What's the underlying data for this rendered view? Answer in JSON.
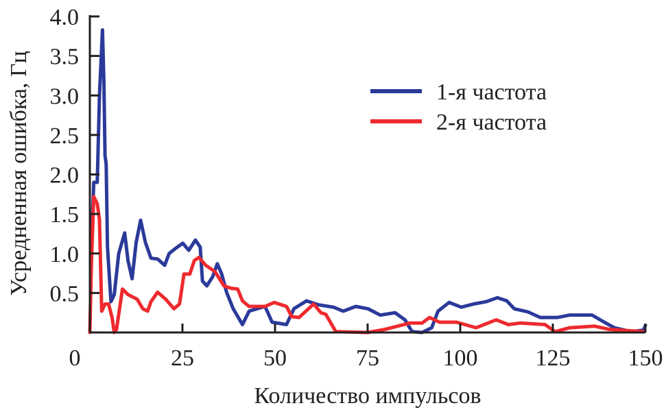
{
  "chart_data": {
    "type": "line",
    "title": "",
    "xlabel": "Количество импульсов",
    "ylabel": "Усредненная ошибка, Гц",
    "xlim": [
      0,
      150
    ],
    "ylim": [
      0,
      4.0
    ],
    "xticks": [
      "0",
      "25",
      "50",
      "75",
      "100",
      "125",
      "150"
    ],
    "yticks": [
      "0.5",
      "1.0",
      "1.5",
      "2.0",
      "2.5",
      "3.0",
      "3.5",
      "4.0"
    ],
    "grid": false,
    "legend_position": "top-right",
    "series": [
      {
        "name": "1-я частота",
        "color": "#2b3a9a",
        "x": [
          0.4,
          1.05,
          2.0,
          2.6,
          3.4,
          3.8,
          4.1,
          4.4,
          4.75,
          5.7,
          6.6,
          7.8,
          9.4,
          10.3,
          11.4,
          12.5,
          13.7,
          15,
          16.5,
          18.3,
          20.2,
          21.4,
          23.3,
          25.1,
          26.7,
          28.5,
          29.8,
          30.4,
          31.6,
          33.2,
          34.4,
          35.6,
          36.9,
          38.7,
          41.2,
          43,
          47.3,
          49.2,
          53.1,
          55.1,
          58.5,
          61.8,
          65.8,
          68.4,
          71.8,
          75.1,
          78.4,
          82.4,
          85.1,
          87.0,
          89.7,
          92.3,
          94.0,
          97.0,
          100.3,
          103.6,
          107.0,
          110.0,
          112.6,
          114.6,
          118.3,
          121.6,
          126.3,
          129.6,
          135.6,
          138.9,
          141.6,
          146.2,
          149.5,
          150
        ],
        "y": [
          1.08,
          1.9,
          1.9,
          3.0,
          3.83,
          3.17,
          2.24,
          2.13,
          1.08,
          0.39,
          0.48,
          1.0,
          1.26,
          0.91,
          0.68,
          1.14,
          1.42,
          1.14,
          0.94,
          0.93,
          0.85,
          1.0,
          1.07,
          1.13,
          1.04,
          1.17,
          1.08,
          0.65,
          0.59,
          0.71,
          0.87,
          0.74,
          0.51,
          0.3,
          0.1,
          0.27,
          0.33,
          0.13,
          0.1,
          0.3,
          0.4,
          0.35,
          0.32,
          0.27,
          0.33,
          0.3,
          0.22,
          0.25,
          0.16,
          0.01,
          0.0,
          0.06,
          0.27,
          0.38,
          0.32,
          0.36,
          0.39,
          0.44,
          0.4,
          0.3,
          0.26,
          0.19,
          0.19,
          0.22,
          0.22,
          0.13,
          0.06,
          0.01,
          0.03,
          0.09
        ]
      },
      {
        "name": "2-я частота",
        "color": "#ee2a2e",
        "x": [
          0,
          0.4,
          1.05,
          2.0,
          2.6,
          3.2,
          4.1,
          5.06,
          6.0,
          6.6,
          7.2,
          8.8,
          10.3,
          12.8,
          14.3,
          15.6,
          16.5,
          18.3,
          20.5,
          22.7,
          24.2,
          25.4,
          27,
          28.2,
          29.4,
          31.3,
          33.8,
          36.2,
          38.1,
          39.9,
          41.2,
          43,
          47.3,
          49.8,
          53.1,
          54.5,
          56.5,
          60.4,
          62.4,
          63.7,
          66.4,
          75.1,
          79.7,
          86.4,
          89.7,
          91.7,
          94.4,
          99.0,
          104.3,
          109.7,
          113.0,
          116.3,
          122.9,
          125.6,
          129.6,
          136.3,
          140.2,
          149.5
        ],
        "y": [
          0.0,
          0.85,
          1.72,
          1.63,
          1.43,
          0.27,
          0.36,
          0.36,
          0.19,
          0.0,
          0.04,
          0.55,
          0.48,
          0.42,
          0.3,
          0.27,
          0.39,
          0.51,
          0.42,
          0.3,
          0.36,
          0.74,
          0.74,
          0.91,
          0.95,
          0.85,
          0.77,
          0.59,
          0.56,
          0.55,
          0.4,
          0.33,
          0.33,
          0.38,
          0.33,
          0.2,
          0.19,
          0.36,
          0.25,
          0.23,
          0.01,
          0.0,
          0.04,
          0.12,
          0.12,
          0.19,
          0.13,
          0.13,
          0.06,
          0.16,
          0.1,
          0.12,
          0.1,
          0.01,
          0.06,
          0.08,
          0.04,
          0.01
        ]
      }
    ]
  }
}
